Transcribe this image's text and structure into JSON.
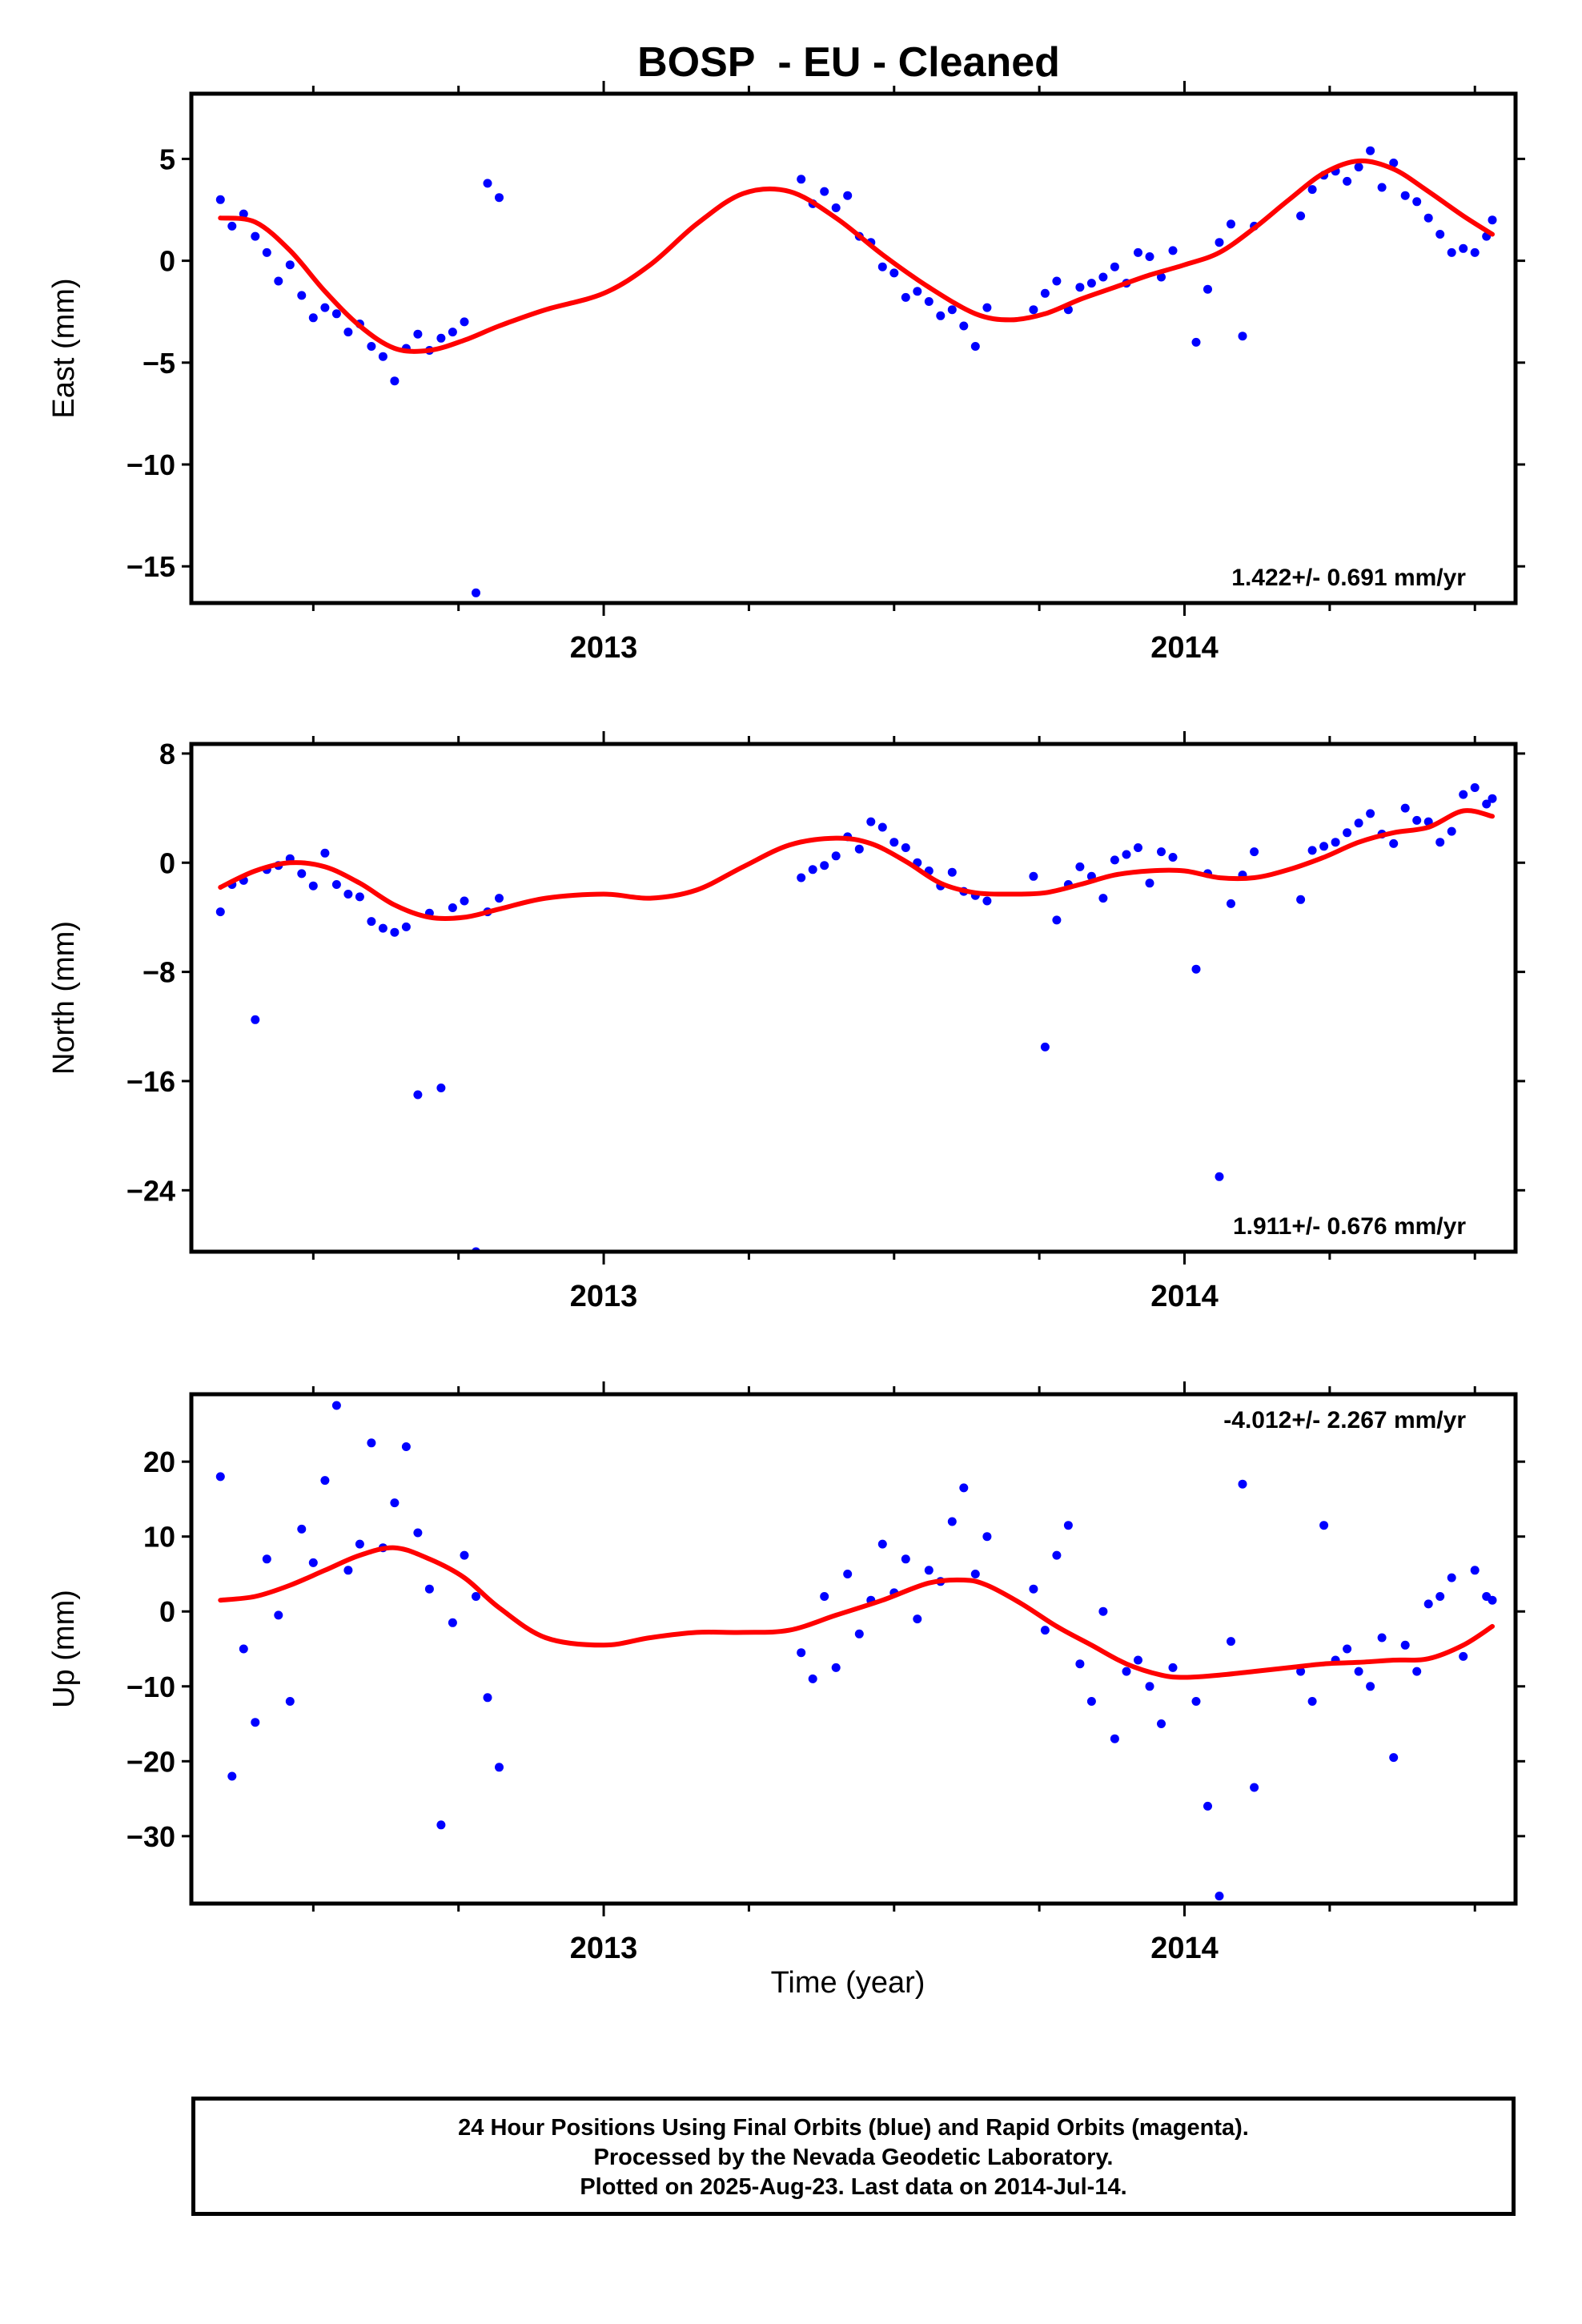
{
  "title": "BOSP  - EU - Cleaned",
  "xlabel": "Time (year)",
  "footer": {
    "line1": "24 Hour Positions Using Final Orbits (blue) and Rapid Orbits (magenta).",
    "line2": "Processed by the Nevada Geodetic Laboratory.",
    "line3": "Plotted on 2025-Aug-23. Last data on 2014-Jul-14."
  },
  "colors": {
    "observations": "#0000ff",
    "model": "#ff0000",
    "axes": "#000000"
  },
  "chart_data": [
    {
      "type": "scatter",
      "ylabel": "East (mm)",
      "xlim": [
        2012.29,
        2014.57
      ],
      "ylim": [
        -16.8,
        8.2
      ],
      "xticks": [
        2013,
        2014
      ],
      "yticks": [
        5,
        0,
        -5,
        -10,
        -15
      ],
      "ytick_labels": [
        "5",
        "0",
        "−5",
        "−10",
        "−15"
      ],
      "rate_label": "1.422+/- 0.691 mm/yr",
      "rate_label_position": "bottom-right",
      "series": [
        {
          "role": "daily positions",
          "color": "#0000ff",
          "x": [
            2012.34,
            2012.36,
            2012.38,
            2012.4,
            2012.42,
            2012.44,
            2012.46,
            2012.48,
            2012.5,
            2012.52,
            2012.54,
            2012.56,
            2012.58,
            2012.6,
            2012.62,
            2012.64,
            2012.66,
            2012.68,
            2012.7,
            2012.72,
            2012.74,
            2012.76,
            2012.78,
            2012.8,
            2012.82,
            2013.34,
            2013.36,
            2013.38,
            2013.4,
            2013.42,
            2013.44,
            2013.46,
            2013.48,
            2013.5,
            2013.52,
            2013.54,
            2013.56,
            2013.58,
            2013.6,
            2013.62,
            2013.64,
            2013.66,
            2013.74,
            2013.76,
            2013.78,
            2013.8,
            2013.82,
            2013.84,
            2013.86,
            2013.88,
            2013.9,
            2013.92,
            2013.94,
            2013.96,
            2013.98,
            2014.02,
            2014.04,
            2014.06,
            2014.08,
            2014.1,
            2014.12,
            2014.2,
            2014.22,
            2014.24,
            2014.26,
            2014.28,
            2014.3,
            2014.32,
            2014.34,
            2014.36,
            2014.38,
            2014.4,
            2014.42,
            2014.44,
            2014.46,
            2014.48,
            2014.5,
            2014.52,
            2014.53
          ],
          "y": [
            3.0,
            1.7,
            2.3,
            1.2,
            0.4,
            -1.0,
            -0.2,
            -1.7,
            -2.8,
            -2.3,
            -2.6,
            -3.5,
            -3.1,
            -4.2,
            -4.7,
            -5.9,
            -4.3,
            -3.6,
            -4.4,
            -3.8,
            -3.5,
            -3.0,
            -16.3,
            3.8,
            3.1,
            4.0,
            2.8,
            3.4,
            2.6,
            3.2,
            1.2,
            0.9,
            -0.3,
            -0.6,
            -1.8,
            -1.5,
            -2.0,
            -2.7,
            -2.4,
            -3.2,
            -4.2,
            -2.3,
            -2.4,
            -1.6,
            -1.0,
            -2.4,
            -1.3,
            -1.1,
            -0.8,
            -0.3,
            -1.1,
            0.4,
            0.2,
            -0.8,
            0.5,
            -4.0,
            -1.4,
            0.9,
            1.8,
            -3.7,
            1.7,
            2.2,
            3.5,
            4.2,
            4.4,
            3.9,
            4.6,
            5.4,
            3.6,
            4.8,
            3.2,
            2.9,
            2.1,
            1.3,
            0.4,
            0.6,
            0.4,
            1.2,
            2.0
          ]
        },
        {
          "role": "model fit",
          "color": "#ff0000",
          "x": [
            2012.34,
            2012.4,
            2012.46,
            2012.52,
            2012.58,
            2012.64,
            2012.7,
            2012.76,
            2012.82,
            2012.9,
            2013.0,
            2013.08,
            2013.16,
            2013.24,
            2013.32,
            2013.4,
            2013.48,
            2013.56,
            2013.64,
            2013.7,
            2013.76,
            2013.82,
            2013.88,
            2013.94,
            2014.0,
            2014.06,
            2014.12,
            2014.18,
            2014.24,
            2014.3,
            2014.36,
            2014.42,
            2014.48,
            2014.53
          ],
          "y": [
            2.1,
            1.9,
            0.5,
            -1.5,
            -3.2,
            -4.3,
            -4.4,
            -3.9,
            -3.2,
            -2.4,
            -1.6,
            -0.2,
            1.8,
            3.3,
            3.4,
            2.1,
            0.3,
            -1.3,
            -2.6,
            -2.9,
            -2.6,
            -1.9,
            -1.3,
            -0.7,
            -0.2,
            0.4,
            1.6,
            3.0,
            4.3,
            4.9,
            4.5,
            3.4,
            2.2,
            1.3
          ]
        }
      ]
    },
    {
      "type": "scatter",
      "ylabel": "North (mm)",
      "xlim": [
        2012.29,
        2014.57
      ],
      "ylim": [
        -28.5,
        8.7
      ],
      "xticks": [
        2013,
        2014
      ],
      "yticks": [
        8,
        0,
        -8,
        -16,
        -24
      ],
      "ytick_labels": [
        "8",
        "0",
        "−8",
        "−16",
        "−24"
      ],
      "rate_label": "1.911+/- 0.676 mm/yr",
      "rate_label_position": "bottom-right",
      "series": [
        {
          "role": "daily positions",
          "color": "#0000ff",
          "x": [
            2012.34,
            2012.36,
            2012.38,
            2012.4,
            2012.42,
            2012.44,
            2012.46,
            2012.48,
            2012.5,
            2012.52,
            2012.54,
            2012.56,
            2012.58,
            2012.6,
            2012.62,
            2012.64,
            2012.66,
            2012.68,
            2012.7,
            2012.72,
            2012.74,
            2012.76,
            2012.78,
            2012.8,
            2012.82,
            2013.34,
            2013.36,
            2013.38,
            2013.4,
            2013.42,
            2013.44,
            2013.46,
            2013.48,
            2013.5,
            2013.52,
            2013.54,
            2013.56,
            2013.58,
            2013.6,
            2013.62,
            2013.64,
            2013.66,
            2013.74,
            2013.76,
            2013.78,
            2013.8,
            2013.82,
            2013.84,
            2013.86,
            2013.88,
            2013.9,
            2013.92,
            2013.94,
            2013.96,
            2013.98,
            2014.02,
            2014.04,
            2014.06,
            2014.08,
            2014.1,
            2014.12,
            2014.2,
            2014.22,
            2014.24,
            2014.26,
            2014.28,
            2014.3,
            2014.32,
            2014.34,
            2014.36,
            2014.38,
            2014.4,
            2014.42,
            2014.44,
            2014.46,
            2014.48,
            2014.5,
            2014.52,
            2014.53
          ],
          "y": [
            -3.6,
            -1.6,
            -1.3,
            -11.5,
            -0.5,
            -0.2,
            0.3,
            -0.8,
            -1.7,
            0.7,
            -1.6,
            -2.3,
            -2.5,
            -4.3,
            -4.8,
            -5.1,
            -4.7,
            -17.0,
            -3.7,
            -16.5,
            -3.3,
            -2.8,
            -28.5,
            -3.6,
            -2.6,
            -1.1,
            -0.5,
            -0.2,
            0.5,
            1.9,
            1.0,
            3.0,
            2.6,
            1.5,
            1.1,
            0.0,
            -0.6,
            -1.7,
            -0.7,
            -2.1,
            -2.4,
            -2.8,
            -1.0,
            -13.5,
            -4.2,
            -1.6,
            -0.3,
            -1.0,
            -2.6,
            0.2,
            0.6,
            1.1,
            -1.5,
            0.8,
            0.4,
            -7.8,
            -0.8,
            -23.0,
            -3.0,
            -0.9,
            0.8,
            -2.7,
            0.9,
            1.2,
            1.5,
            2.2,
            2.9,
            3.6,
            2.1,
            1.4,
            4.0,
            3.1,
            3.0,
            1.5,
            2.3,
            5.0,
            5.5,
            4.3,
            4.7
          ]
        },
        {
          "role": "model fit",
          "color": "#ff0000",
          "x": [
            2012.34,
            2012.4,
            2012.46,
            2012.52,
            2012.58,
            2012.64,
            2012.7,
            2012.76,
            2012.82,
            2012.9,
            2013.0,
            2013.08,
            2013.16,
            2013.24,
            2013.32,
            2013.4,
            2013.46,
            2013.52,
            2013.58,
            2013.64,
            2013.7,
            2013.76,
            2013.82,
            2013.88,
            2013.94,
            2014.0,
            2014.06,
            2014.12,
            2014.18,
            2014.24,
            2014.3,
            2014.36,
            2014.42,
            2014.48,
            2014.53
          ],
          "y": [
            -1.8,
            -0.6,
            0.0,
            -0.3,
            -1.5,
            -3.1,
            -4.0,
            -4.0,
            -3.4,
            -2.6,
            -2.3,
            -2.6,
            -2.0,
            -0.3,
            1.3,
            1.8,
            1.4,
            0.1,
            -1.5,
            -2.2,
            -2.3,
            -2.2,
            -1.6,
            -0.9,
            -0.6,
            -0.6,
            -1.1,
            -1.1,
            -0.5,
            0.4,
            1.5,
            2.2,
            2.6,
            3.8,
            3.4
          ]
        }
      ]
    },
    {
      "type": "scatter",
      "ylabel": "Up (mm)",
      "xlim": [
        2012.29,
        2014.57
      ],
      "ylim": [
        -39,
        29
      ],
      "xticks": [
        2013,
        2014
      ],
      "yticks": [
        20,
        10,
        0,
        -10,
        -20,
        -30
      ],
      "ytick_labels": [
        "20",
        "10",
        "0",
        "−10",
        "−20",
        "−30"
      ],
      "rate_label": "-4.012+/- 2.267 mm/yr",
      "rate_label_position": "top-right",
      "series": [
        {
          "role": "daily positions",
          "color": "#0000ff",
          "x": [
            2012.34,
            2012.36,
            2012.38,
            2012.4,
            2012.42,
            2012.44,
            2012.46,
            2012.48,
            2012.5,
            2012.52,
            2012.54,
            2012.56,
            2012.58,
            2012.6,
            2012.62,
            2012.64,
            2012.66,
            2012.68,
            2012.7,
            2012.72,
            2012.74,
            2012.76,
            2012.78,
            2012.8,
            2012.82,
            2013.34,
            2013.36,
            2013.38,
            2013.4,
            2013.42,
            2013.44,
            2013.46,
            2013.48,
            2013.5,
            2013.52,
            2013.54,
            2013.56,
            2013.58,
            2013.6,
            2013.62,
            2013.64,
            2013.66,
            2013.74,
            2013.76,
            2013.78,
            2013.8,
            2013.82,
            2013.84,
            2013.86,
            2013.88,
            2013.9,
            2013.92,
            2013.94,
            2013.96,
            2013.98,
            2014.02,
            2014.04,
            2014.06,
            2014.08,
            2014.1,
            2014.12,
            2014.2,
            2014.22,
            2014.24,
            2014.26,
            2014.28,
            2014.3,
            2014.32,
            2014.34,
            2014.36,
            2014.38,
            2014.4,
            2014.42,
            2014.44,
            2014.46,
            2014.48,
            2014.5,
            2014.52,
            2014.53
          ],
          "y": [
            18.0,
            -22.0,
            -5.0,
            -14.8,
            7.0,
            -0.5,
            -12.0,
            11.0,
            6.5,
            17.5,
            27.5,
            5.5,
            9.0,
            22.5,
            8.5,
            14.5,
            22.0,
            10.5,
            3.0,
            -28.5,
            -1.5,
            7.5,
            2.0,
            -11.5,
            -20.8,
            -5.5,
            -9.0,
            2.0,
            -7.5,
            5.0,
            -3.0,
            1.5,
            9.0,
            2.5,
            7.0,
            -1.0,
            5.5,
            4.0,
            12.0,
            16.5,
            5.0,
            10.0,
            3.0,
            -2.5,
            7.5,
            11.5,
            -7.0,
            -12.0,
            0.0,
            -17.0,
            -8.0,
            -6.5,
            -10.0,
            -15.0,
            -7.5,
            -12.0,
            -26.0,
            -38.0,
            -4.0,
            17.0,
            -23.5,
            -8.0,
            -12.0,
            11.5,
            -6.5,
            -5.0,
            -8.0,
            -10.0,
            -3.5,
            -19.5,
            -4.5,
            -8.0,
            1.0,
            2.0,
            4.5,
            -6.0,
            5.5,
            2.0,
            1.5
          ]
        },
        {
          "role": "model fit",
          "color": "#ff0000",
          "x": [
            2012.34,
            2012.4,
            2012.46,
            2012.52,
            2012.58,
            2012.64,
            2012.7,
            2012.76,
            2012.82,
            2012.9,
            2013.0,
            2013.08,
            2013.16,
            2013.24,
            2013.32,
            2013.4,
            2013.48,
            2013.56,
            2013.62,
            2013.66,
            2013.72,
            2013.78,
            2013.84,
            2013.9,
            2013.96,
            2014.0,
            2014.06,
            2014.12,
            2014.18,
            2014.24,
            2014.3,
            2014.36,
            2014.42,
            2014.48,
            2014.53
          ],
          "y": [
            1.5,
            2.0,
            3.5,
            5.5,
            7.5,
            8.5,
            7.0,
            4.5,
            0.5,
            -3.5,
            -4.5,
            -3.5,
            -2.8,
            -2.8,
            -2.5,
            -0.5,
            1.5,
            3.8,
            4.2,
            3.5,
            1.0,
            -2.0,
            -4.5,
            -7.0,
            -8.5,
            -8.8,
            -8.5,
            -8.0,
            -7.5,
            -7.0,
            -6.8,
            -6.5,
            -6.3,
            -4.5,
            -2.0
          ]
        }
      ]
    }
  ]
}
